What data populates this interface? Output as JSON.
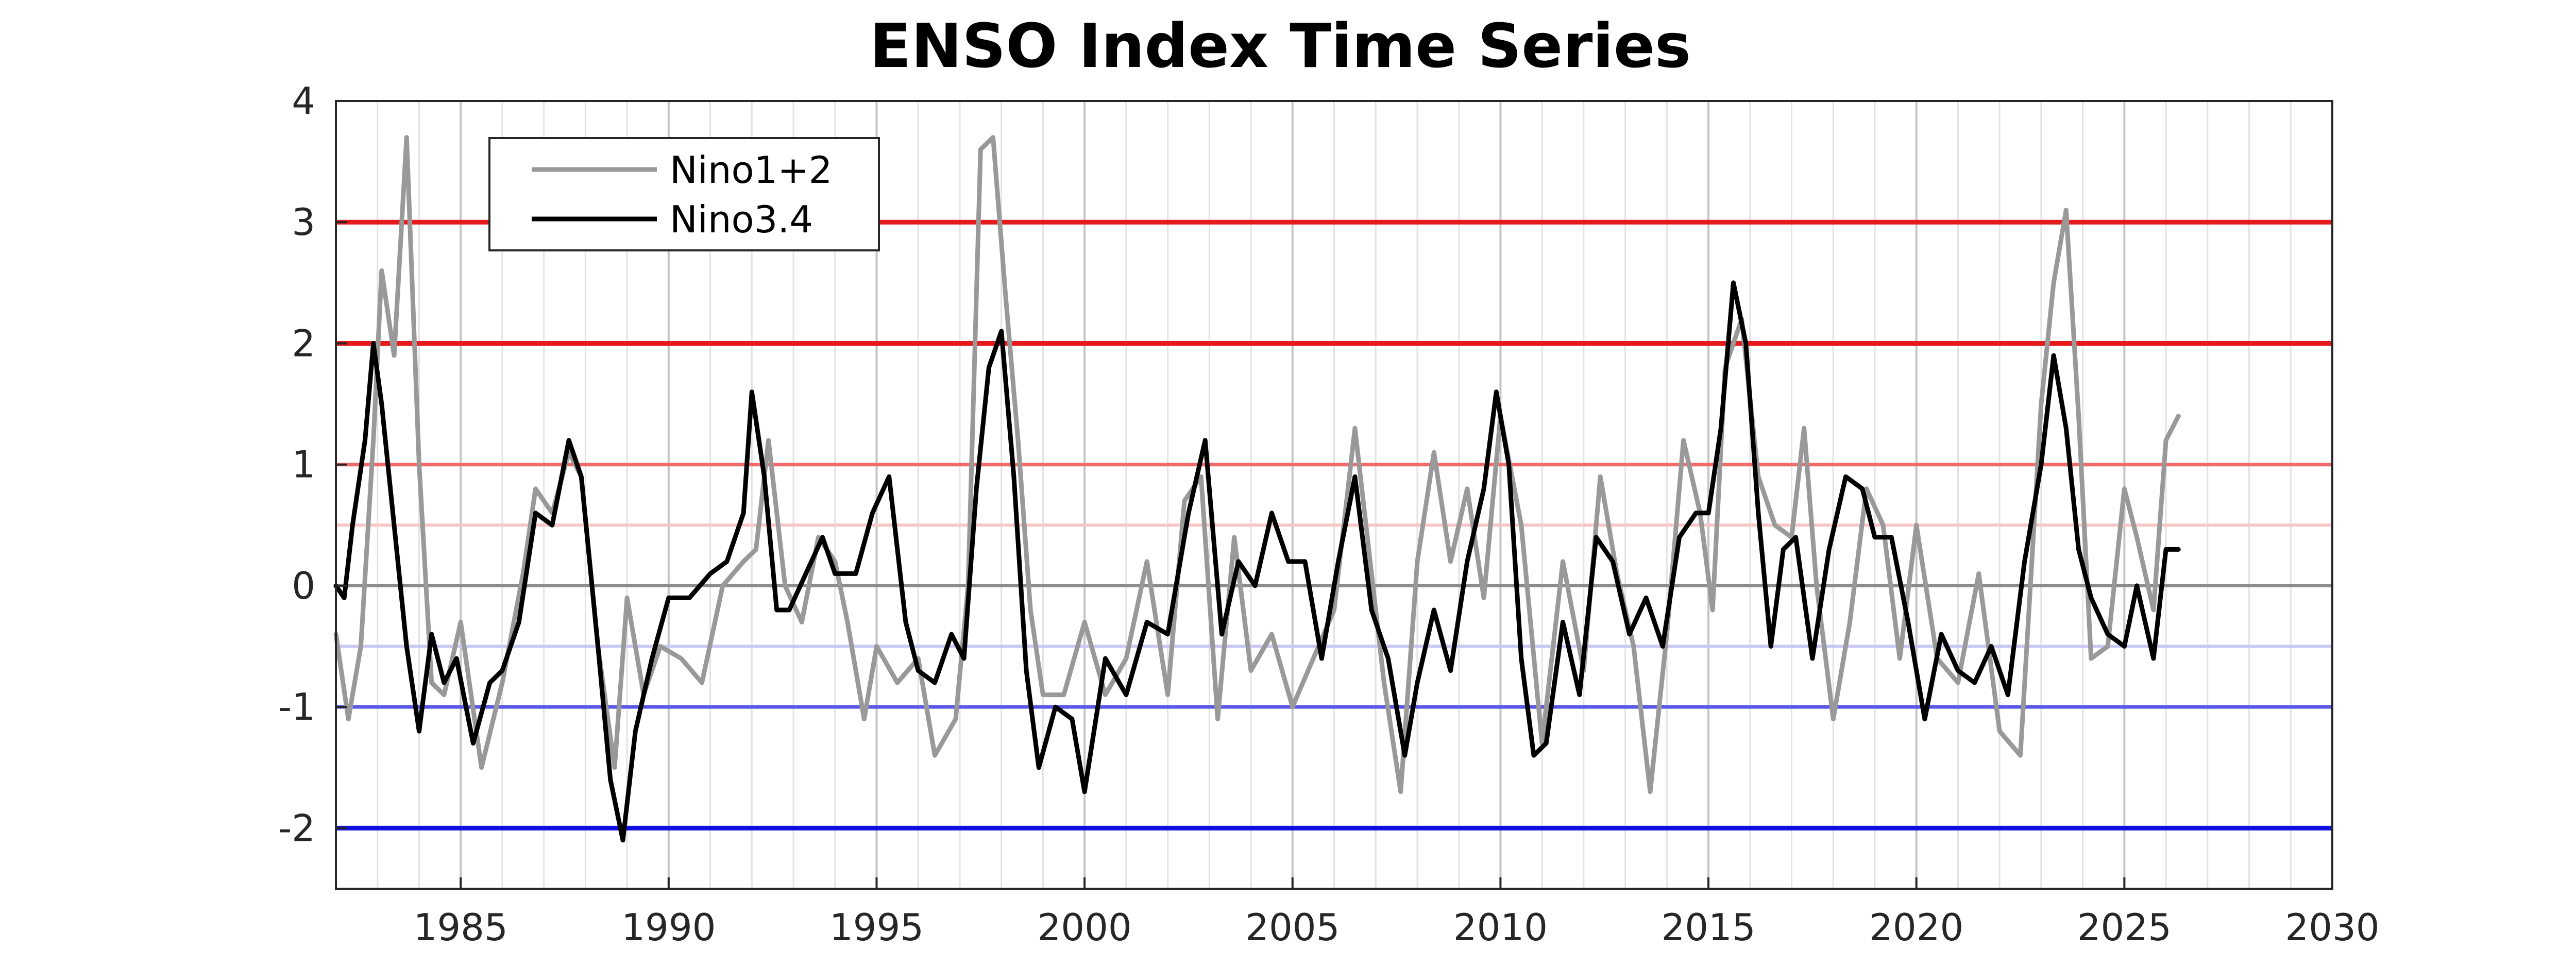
{
  "chart_data": {
    "type": "line",
    "title": "ENSO Index Time Series",
    "xlabel": "",
    "ylabel": "",
    "xlim": [
      1982,
      2030
    ],
    "ylim": [
      -2.5,
      4
    ],
    "xticks": [
      1985,
      1990,
      1995,
      2000,
      2005,
      2010,
      2015,
      2020,
      2025,
      2030
    ],
    "yticks": [
      -2,
      -1,
      0,
      1,
      2,
      3,
      4
    ],
    "grid": "vertical minor (yearly) + major",
    "legend_position": "top-left",
    "reference_lines": [
      {
        "y": 3,
        "color": "#e41a1c"
      },
      {
        "y": 2,
        "color": "#e41a1c"
      },
      {
        "y": 1,
        "color": "#f26a6a"
      },
      {
        "y": 0.5,
        "color": "#f7c6c6"
      },
      {
        "y": 0,
        "color": "#8c8c8c"
      },
      {
        "y": -0.5,
        "color": "#c8c8f5"
      },
      {
        "y": -1,
        "color": "#5a5ae6"
      },
      {
        "y": -2,
        "color": "#1010e0"
      }
    ],
    "series": [
      {
        "name": "Nino1+2",
        "color": "#999999",
        "x": [
          1982.0,
          1982.3,
          1982.6,
          1982.9,
          1983.1,
          1983.4,
          1983.7,
          1984.0,
          1984.3,
          1984.6,
          1985.0,
          1985.5,
          1986.0,
          1986.5,
          1986.8,
          1987.2,
          1987.6,
          1987.9,
          1988.3,
          1988.7,
          1989.0,
          1989.4,
          1989.8,
          1990.3,
          1990.8,
          1991.3,
          1991.8,
          1992.1,
          1992.4,
          1992.8,
          1993.2,
          1993.6,
          1994.0,
          1994.3,
          1994.7,
          1995.0,
          1995.5,
          1996.0,
          1996.4,
          1996.9,
          1997.2,
          1997.5,
          1997.8,
          1998.1,
          1998.4,
          1998.7,
          1999.0,
          1999.5,
          2000.0,
          2000.5,
          2001.0,
          2001.5,
          2002.0,
          2002.4,
          2002.8,
          2003.2,
          2003.6,
          2004.0,
          2004.5,
          2005.0,
          2005.5,
          2006.0,
          2006.5,
          2006.8,
          2007.2,
          2007.6,
          2008.0,
          2008.4,
          2008.8,
          2009.2,
          2009.6,
          2010.0,
          2010.5,
          2011.0,
          2011.5,
          2012.0,
          2012.4,
          2012.8,
          2013.2,
          2013.6,
          2014.0,
          2014.4,
          2014.8,
          2015.1,
          2015.4,
          2015.8,
          2016.2,
          2016.6,
          2017.0,
          2017.3,
          2017.6,
          2018.0,
          2018.4,
          2018.8,
          2019.2,
          2019.6,
          2020.0,
          2020.5,
          2021.0,
          2021.5,
          2022.0,
          2022.5,
          2023.0,
          2023.3,
          2023.6,
          2023.9,
          2024.2,
          2024.6,
          2025.0,
          2025.3,
          2025.7,
          2026.0,
          2026.3
        ],
        "values": [
          -0.4,
          -1.1,
          -0.5,
          1.2,
          2.6,
          1.9,
          3.7,
          1.0,
          -0.8,
          -0.9,
          -0.3,
          -1.5,
          -0.8,
          0.1,
          0.8,
          0.6,
          1.1,
          0.9,
          -0.5,
          -1.5,
          -0.1,
          -0.9,
          -0.5,
          -0.6,
          -0.8,
          0.0,
          0.2,
          0.3,
          1.2,
          0.0,
          -0.3,
          0.4,
          0.2,
          -0.3,
          -1.1,
          -0.5,
          -0.8,
          -0.6,
          -1.4,
          -1.1,
          0.0,
          3.6,
          3.7,
          2.4,
          1.2,
          -0.2,
          -0.9,
          -0.9,
          -0.3,
          -0.9,
          -0.6,
          0.2,
          -0.9,
          0.7,
          0.9,
          -1.1,
          0.4,
          -0.7,
          -0.4,
          -1.0,
          -0.6,
          -0.2,
          1.3,
          0.4,
          -0.8,
          -1.7,
          0.2,
          1.1,
          0.2,
          0.8,
          -0.1,
          1.4,
          0.5,
          -1.3,
          0.2,
          -0.7,
          0.9,
          0.1,
          -0.5,
          -1.7,
          -0.4,
          1.2,
          0.6,
          -0.2,
          1.8,
          2.2,
          0.9,
          0.5,
          0.4,
          1.3,
          0.0,
          -1.1,
          -0.3,
          0.8,
          0.5,
          -0.6,
          0.5,
          -0.6,
          -0.8,
          0.1,
          -1.2,
          -1.4,
          1.5,
          2.5,
          3.1,
          1.4,
          -0.6,
          -0.5,
          0.8,
          0.4,
          -0.2,
          1.2,
          1.4
        ]
      },
      {
        "name": "Nino3.4",
        "color": "#000000",
        "x": [
          1982.0,
          1982.2,
          1982.4,
          1982.7,
          1982.9,
          1983.1,
          1983.4,
          1983.7,
          1984.0,
          1984.3,
          1984.6,
          1984.9,
          1985.3,
          1985.7,
          1986.0,
          1986.4,
          1986.8,
          1987.2,
          1987.6,
          1987.9,
          1988.3,
          1988.6,
          1988.9,
          1989.2,
          1989.6,
          1990.0,
          1990.5,
          1991.0,
          1991.4,
          1991.8,
          1992.0,
          1992.3,
          1992.6,
          1992.9,
          1993.3,
          1993.7,
          1994.0,
          1994.5,
          1994.9,
          1995.3,
          1995.7,
          1996.0,
          1996.4,
          1996.8,
          1997.1,
          1997.4,
          1997.7,
          1998.0,
          1998.3,
          1998.6,
          1998.9,
          1999.3,
          1999.7,
          2000.0,
          2000.5,
          2001.0,
          2001.5,
          2002.0,
          2002.5,
          2002.9,
          2003.3,
          2003.7,
          2004.1,
          2004.5,
          2004.9,
          2005.3,
          2005.7,
          2006.1,
          2006.5,
          2006.9,
          2007.3,
          2007.7,
          2008.0,
          2008.4,
          2008.8,
          2009.2,
          2009.6,
          2009.9,
          2010.2,
          2010.5,
          2010.8,
          2011.1,
          2011.5,
          2011.9,
          2012.3,
          2012.7,
          2013.1,
          2013.5,
          2013.9,
          2014.3,
          2014.7,
          2015.0,
          2015.3,
          2015.6,
          2015.9,
          2016.2,
          2016.5,
          2016.8,
          2017.1,
          2017.5,
          2017.9,
          2018.3,
          2018.7,
          2019.0,
          2019.4,
          2019.8,
          2020.2,
          2020.6,
          2021.0,
          2021.4,
          2021.8,
          2022.2,
          2022.6,
          2023.0,
          2023.3,
          2023.6,
          2023.9,
          2024.2,
          2024.6,
          2025.0,
          2025.3,
          2025.7,
          2026.0,
          2026.3
        ],
        "values": [
          0.0,
          -0.1,
          0.5,
          1.2,
          2.0,
          1.5,
          0.5,
          -0.5,
          -1.2,
          -0.4,
          -0.8,
          -0.6,
          -1.3,
          -0.8,
          -0.7,
          -0.3,
          0.6,
          0.5,
          1.2,
          0.9,
          -0.5,
          -1.6,
          -2.1,
          -1.2,
          -0.6,
          -0.1,
          -0.1,
          0.1,
          0.2,
          0.6,
          1.6,
          0.9,
          -0.2,
          -0.2,
          0.1,
          0.4,
          0.1,
          0.1,
          0.6,
          0.9,
          -0.3,
          -0.7,
          -0.8,
          -0.4,
          -0.6,
          0.8,
          1.8,
          2.1,
          0.9,
          -0.7,
          -1.5,
          -1.0,
          -1.1,
          -1.7,
          -0.6,
          -0.9,
          -0.3,
          -0.4,
          0.6,
          1.2,
          -0.4,
          0.2,
          0.0,
          0.6,
          0.2,
          0.2,
          -0.6,
          0.2,
          0.9,
          -0.2,
          -0.6,
          -1.4,
          -0.8,
          -0.2,
          -0.7,
          0.2,
          0.8,
          1.6,
          1.0,
          -0.6,
          -1.4,
          -1.3,
          -0.3,
          -0.9,
          0.4,
          0.2,
          -0.4,
          -0.1,
          -0.5,
          0.4,
          0.6,
          0.6,
          1.3,
          2.5,
          2.0,
          0.6,
          -0.5,
          0.3,
          0.4,
          -0.6,
          0.3,
          0.9,
          0.8,
          0.4,
          0.4,
          -0.3,
          -1.1,
          -0.4,
          -0.7,
          -0.8,
          -0.5,
          -0.9,
          0.2,
          1.0,
          1.9,
          1.3,
          0.3,
          -0.1,
          -0.4,
          -0.5,
          0.0,
          -0.6,
          0.3,
          0.3
        ]
      }
    ]
  }
}
